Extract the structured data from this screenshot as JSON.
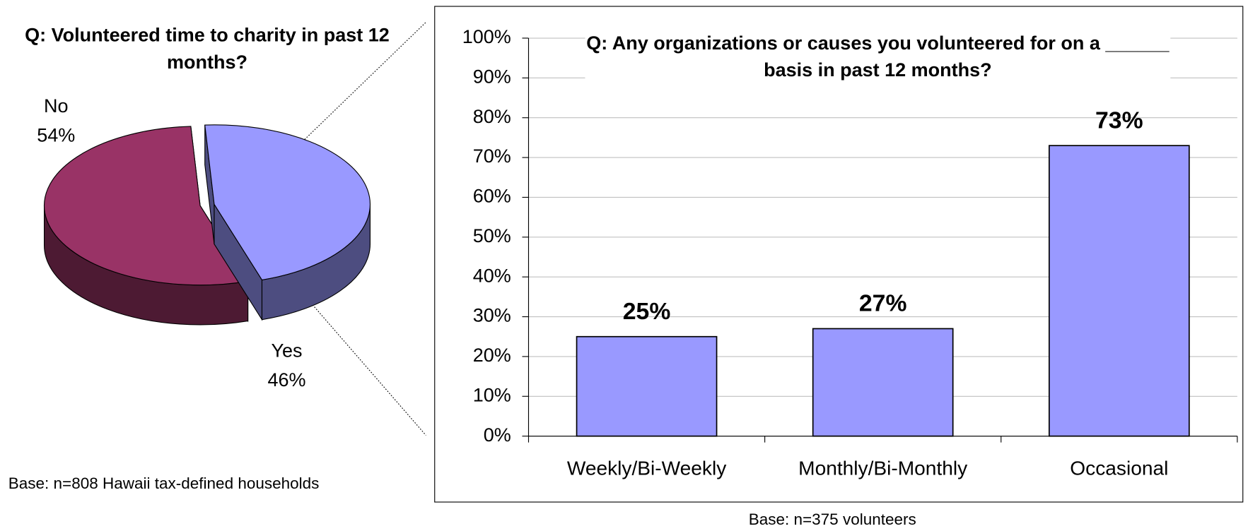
{
  "chart_data": [
    {
      "type": "pie",
      "title": "Q: Volunteered time to charity in past 12 months?",
      "categories": [
        "No",
        "Yes"
      ],
      "values": [
        54,
        46
      ],
      "value_labels": [
        "54%",
        "46%"
      ],
      "colors": [
        "#993366",
        "#9999ff"
      ],
      "footnote": "Base: n=808 Hawaii tax-defined households"
    },
    {
      "type": "bar",
      "title": "Q: Any organizations or causes you volunteered for on a ______ basis in past 12 months?",
      "categories": [
        "Weekly/Bi-Weekly",
        "Monthly/Bi-Monthly",
        "Occasional"
      ],
      "values": [
        25,
        27,
        73
      ],
      "value_labels": [
        "25%",
        "27%",
        "73%"
      ],
      "color": "#9999ff",
      "ylim": [
        0,
        100
      ],
      "yticks": [
        {
          "value": 0,
          "label": "0%"
        },
        {
          "value": 10,
          "label": "10%"
        },
        {
          "value": 20,
          "label": "20%"
        },
        {
          "value": 30,
          "label": "30%"
        },
        {
          "value": 40,
          "label": "40%"
        },
        {
          "value": 50,
          "label": "50%"
        },
        {
          "value": 60,
          "label": "60%"
        },
        {
          "value": 70,
          "label": "70%"
        },
        {
          "value": 80,
          "label": "80%"
        },
        {
          "value": 90,
          "label": "90%"
        },
        {
          "value": 100,
          "label": "100%"
        }
      ],
      "grid": true,
      "footnote": "Base: n=375 volunteers"
    }
  ]
}
